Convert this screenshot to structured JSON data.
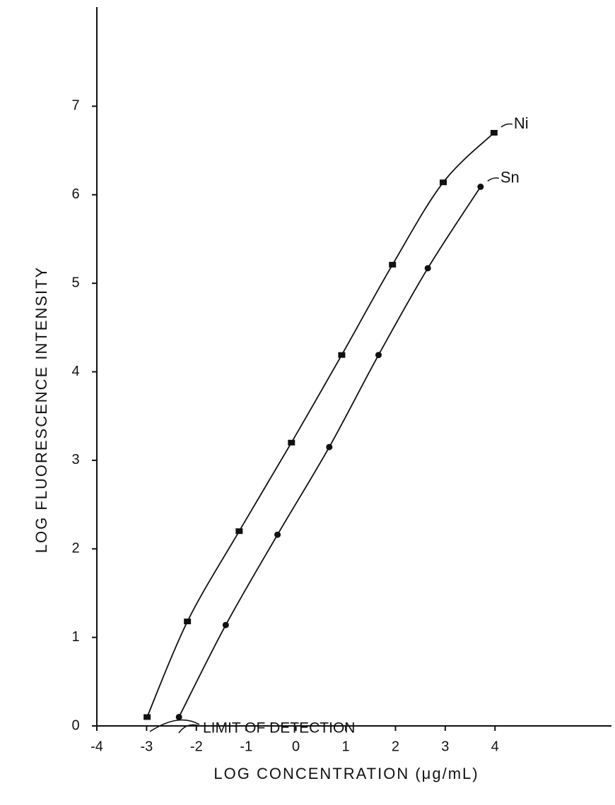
{
  "chart_data": {
    "type": "line",
    "x_label": "LOG CONCENTRATION (μg/mL)",
    "y_label": "LOG FLUORESCENCE INTENSITY",
    "annotation": "LIMIT OF DETECTION",
    "xlim": [
      -4,
      6.34
    ],
    "ylim": [
      0,
      8.12
    ],
    "xticks": [
      -4,
      -3,
      -2,
      -1,
      0,
      1,
      2,
      3,
      4
    ],
    "yticks": [
      0,
      1,
      2,
      3,
      4,
      5,
      6,
      7
    ],
    "grid": false,
    "series": [
      {
        "name": "Ni",
        "color": "#111111",
        "marker": "square",
        "x": [
          -2.99,
          -2.18,
          -1.14,
          -0.09,
          0.92,
          1.94,
          2.96,
          3.98
        ],
        "values": [
          0.1,
          1.18,
          2.2,
          3.2,
          4.19,
          5.21,
          6.14,
          6.7
        ]
      },
      {
        "name": "Sn",
        "color": "#111111",
        "marker": "circle",
        "x": [
          -2.35,
          -1.41,
          -0.37,
          0.67,
          1.66,
          2.65,
          3.71
        ],
        "values": [
          0.1,
          1.14,
          2.16,
          3.15,
          4.19,
          5.17,
          6.09
        ]
      }
    ]
  }
}
